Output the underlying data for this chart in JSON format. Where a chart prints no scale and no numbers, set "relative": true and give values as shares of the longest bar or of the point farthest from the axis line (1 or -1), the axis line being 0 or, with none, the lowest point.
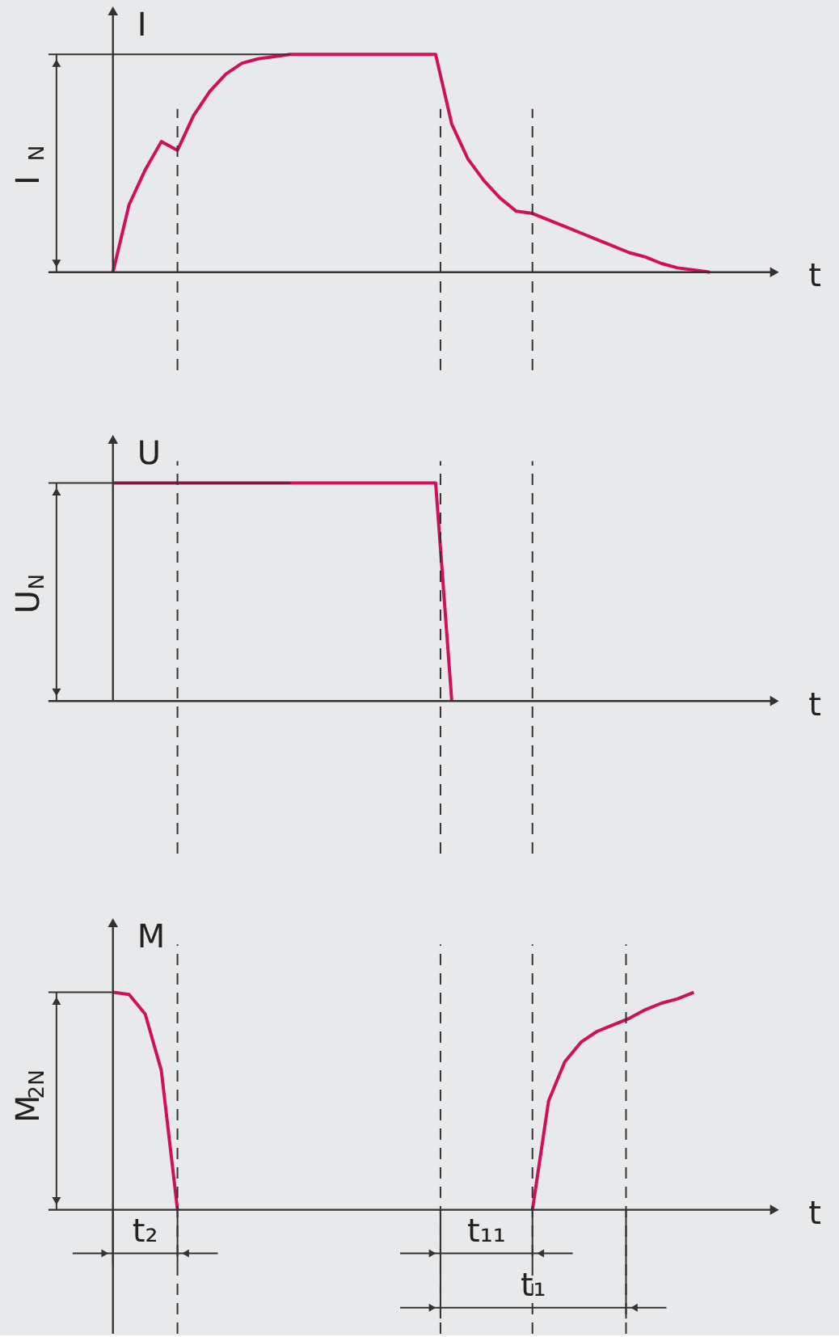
{
  "chart_data": [
    {
      "type": "line",
      "relative": true,
      "categories": [
        null,
        null,
        null,
        null,
        null,
        null,
        null,
        null,
        null,
        null,
        null,
        null,
        null,
        null,
        null,
        null,
        null,
        null,
        null,
        null,
        null,
        null,
        null,
        null,
        null,
        null,
        null,
        null,
        null,
        null,
        null,
        null,
        null,
        null,
        null,
        null,
        null,
        null
      ],
      "ylabel": "I",
      "xlabel": "t",
      "annotations": [
        "I$_{N}$"
      ],
      "grid": false,
      "legend": false,
      "series": [
        {
          "color": "#d0105a",
          "values": [
            0,
            0.31,
            0.47,
            0.6,
            0.56,
            0.72,
            0.83,
            0.91,
            0.96,
            0.98,
            0.99,
            1,
            1,
            1,
            1,
            1,
            1,
            1,
            1,
            1,
            1,
            0.68,
            0.52,
            0.42,
            0.34,
            0.28,
            0.27,
            0.24,
            0.21,
            0.18,
            0.15,
            0.12,
            0.09,
            0.07,
            0.04,
            0.02,
            0.01,
            0
          ]
        }
      ]
    },
    {
      "type": "line",
      "relative": true,
      "categories": [
        null,
        null,
        null,
        null,
        null,
        null,
        null,
        null,
        null,
        null,
        null,
        null,
        null,
        null,
        null,
        null,
        null,
        null,
        null,
        null,
        null,
        null,
        null,
        null,
        null,
        null,
        null,
        null,
        null,
        null,
        null,
        null,
        null,
        null,
        null,
        null,
        null,
        null
      ],
      "ylabel": "U",
      "xlabel": "t",
      "annotations": [
        "U$_{N}$"
      ],
      "grid": false,
      "legend": false,
      "series": [
        {
          "color": "#d0105a",
          "values": [
            1,
            1,
            1,
            1,
            1,
            1,
            1,
            1,
            1,
            1,
            1,
            1,
            1,
            1,
            1,
            1,
            1,
            1,
            1,
            1,
            1,
            0,
            null,
            null,
            null,
            null,
            null,
            null,
            null,
            null,
            null,
            null,
            null,
            null,
            null,
            null,
            null,
            null
          ]
        }
      ]
    },
    {
      "type": "line",
      "relative": true,
      "categories": [
        null,
        null,
        null,
        null,
        null,
        null,
        null,
        null,
        null,
        null,
        null,
        null,
        null,
        null,
        null,
        null,
        null,
        null,
        null,
        null,
        null,
        null,
        null,
        null,
        null,
        null,
        null,
        null,
        null,
        null,
        null,
        null,
        null,
        null,
        null,
        null,
        null,
        null
      ],
      "ylabel": "M",
      "xlabel": "t",
      "annotations": [
        "M$_{2N}$",
        "t₂",
        "t₁₁",
        "t₁"
      ],
      "grid": false,
      "legend": false,
      "series": [
        {
          "color": "#d0105a",
          "values": [
            1,
            0.99,
            0.9,
            0.64,
            0,
            null,
            null,
            null,
            null,
            null,
            null,
            null,
            null,
            null,
            null,
            null,
            null,
            null,
            null,
            null,
            null,
            null,
            null,
            null,
            null,
            null,
            0,
            0.5,
            0.68,
            0.77,
            0.82,
            0.85,
            0.88,
            0.92,
            0.95,
            0.97,
            1,
            null
          ]
        }
      ]
    }
  ]
}
